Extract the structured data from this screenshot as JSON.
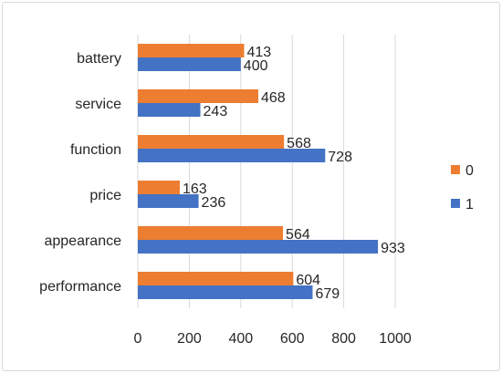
{
  "chart_data": {
    "type": "bar",
    "orientation": "horizontal",
    "categories": [
      "battery",
      "service",
      "function",
      "price",
      "appearance",
      "performance"
    ],
    "series": [
      {
        "name": "0",
        "values": [
          413,
          468,
          568,
          163,
          564,
          604
        ],
        "color": "#ED7D31"
      },
      {
        "name": "1",
        "values": [
          400,
          243,
          728,
          236,
          933,
          679
        ],
        "color": "#4472C4"
      }
    ],
    "xlim": [
      0,
      1000
    ],
    "xticks": [
      0,
      200,
      400,
      600,
      800,
      1000
    ],
    "grid": "vertical",
    "legend_position": "right"
  }
}
